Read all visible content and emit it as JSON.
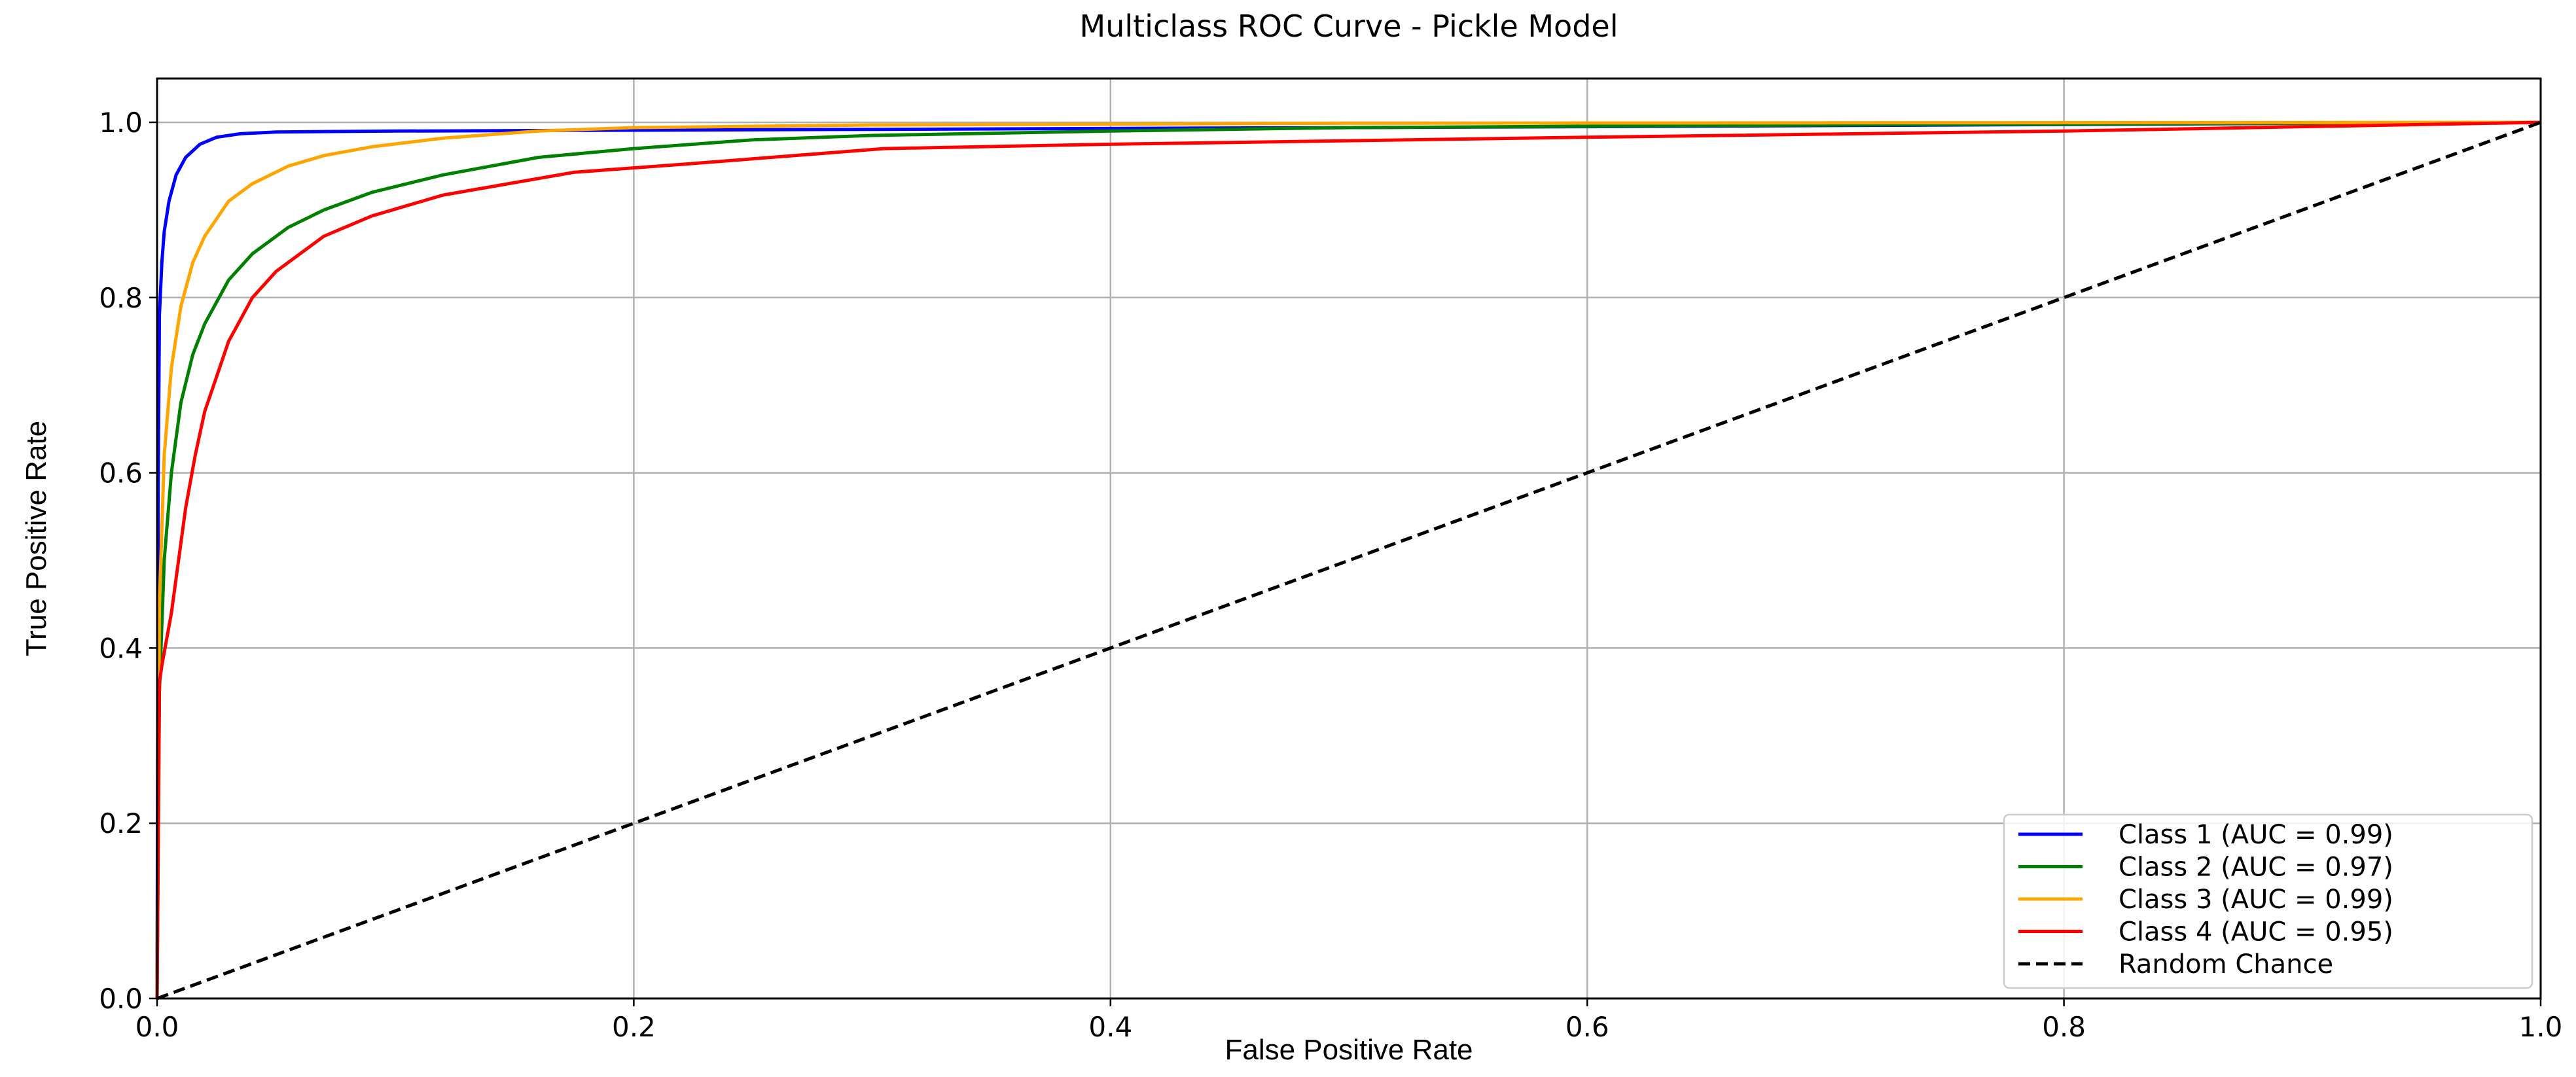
{
  "chart_data": {
    "type": "line",
    "title": "Multiclass ROC Curve - Pickle Model",
    "xlabel": "False Positive Rate",
    "ylabel": "True Positive Rate",
    "xlim": [
      0.0,
      1.0
    ],
    "ylim": [
      0.0,
      1.05
    ],
    "xticks": [
      "0.0",
      "0.2",
      "0.4",
      "0.6",
      "0.8",
      "1.0"
    ],
    "yticks": [
      "0.0",
      "0.2",
      "0.4",
      "0.6",
      "0.8",
      "1.0"
    ],
    "grid": true,
    "legend_position": "lower-right",
    "series": [
      {
        "name": "Class 1 (AUC = 0.99)",
        "color": "#0000ff",
        "style": "solid",
        "x": [
          0.0,
          0.0005,
          0.001,
          0.002,
          0.003,
          0.005,
          0.008,
          0.012,
          0.018,
          0.025,
          0.035,
          0.05,
          0.1,
          0.3,
          0.6,
          1.0
        ],
        "y": [
          0.0,
          0.6,
          0.78,
          0.84,
          0.875,
          0.91,
          0.94,
          0.96,
          0.975,
          0.983,
          0.987,
          0.989,
          0.99,
          0.992,
          0.995,
          1.0
        ]
      },
      {
        "name": "Class 2 (AUC = 0.97)",
        "color": "#008000",
        "style": "solid",
        "x": [
          0.0,
          0.001,
          0.003,
          0.006,
          0.01,
          0.015,
          0.02,
          0.03,
          0.04,
          0.055,
          0.07,
          0.09,
          0.12,
          0.16,
          0.2,
          0.25,
          0.3,
          0.4,
          0.5,
          0.7,
          1.0
        ],
        "y": [
          0.0,
          0.35,
          0.5,
          0.6,
          0.68,
          0.735,
          0.77,
          0.82,
          0.85,
          0.88,
          0.9,
          0.92,
          0.94,
          0.96,
          0.97,
          0.98,
          0.985,
          0.99,
          0.994,
          0.997,
          1.0
        ]
      },
      {
        "name": "Class 3 (AUC = 0.99)",
        "color": "#ffa500",
        "style": "solid",
        "x": [
          0.0,
          0.001,
          0.003,
          0.006,
          0.01,
          0.015,
          0.02,
          0.03,
          0.04,
          0.055,
          0.07,
          0.09,
          0.12,
          0.16,
          0.2,
          0.3,
          0.5,
          1.0
        ],
        "y": [
          0.0,
          0.45,
          0.62,
          0.72,
          0.79,
          0.84,
          0.87,
          0.91,
          0.93,
          0.95,
          0.962,
          0.972,
          0.982,
          0.99,
          0.994,
          0.997,
          0.999,
          1.0
        ]
      },
      {
        "name": "Class 4 (AUC = 0.95)",
        "color": "#ff0000",
        "style": "solid",
        "x": [
          0.0,
          0.001,
          0.002,
          0.004,
          0.006,
          0.009,
          0.012,
          0.016,
          0.02,
          0.025,
          0.03,
          0.04,
          0.05,
          0.06,
          0.07,
          0.09,
          0.12,
          0.175,
          0.22,
          0.305,
          0.4,
          0.6,
          0.8,
          1.0
        ],
        "y": [
          0.0,
          0.36,
          0.38,
          0.41,
          0.44,
          0.5,
          0.56,
          0.62,
          0.67,
          0.71,
          0.75,
          0.8,
          0.83,
          0.85,
          0.87,
          0.893,
          0.917,
          0.943,
          0.952,
          0.97,
          0.975,
          0.983,
          0.99,
          1.0
        ]
      },
      {
        "name": "Random Chance",
        "color": "#000000",
        "style": "dashed",
        "x": [
          0.0,
          1.0
        ],
        "y": [
          0.0,
          1.0
        ]
      }
    ]
  }
}
